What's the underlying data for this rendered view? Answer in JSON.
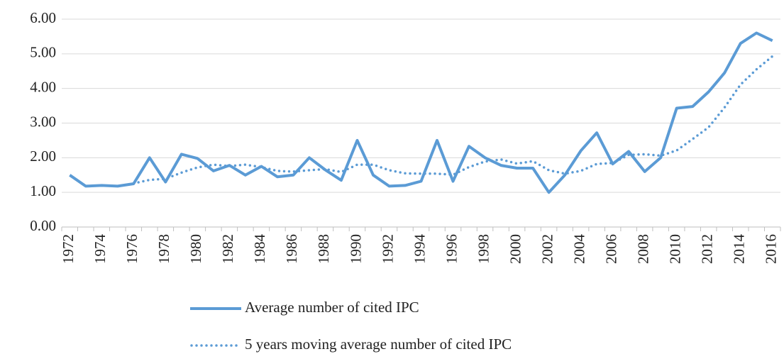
{
  "chart_data": {
    "type": "line",
    "categories": [
      "1972",
      null,
      "1974",
      null,
      "1976",
      null,
      "1978",
      null,
      "1980",
      null,
      "1982",
      null,
      "1984",
      null,
      "1986",
      null,
      "1988",
      null,
      "1990",
      null,
      "1992",
      null,
      "1994",
      null,
      "1996",
      null,
      "1998",
      null,
      "2000",
      null,
      "2002",
      null,
      "2004",
      null,
      "2006",
      null,
      "2008",
      null,
      "2010",
      null,
      "2012",
      null,
      "2014",
      null,
      "2016"
    ],
    "series": [
      {
        "name": "Average number of cited IPC",
        "color": "#5b9bd5",
        "style": "solid",
        "values": [
          1.5,
          1.18,
          1.2,
          1.18,
          1.25,
          2.0,
          1.3,
          2.1,
          1.98,
          1.62,
          1.78,
          1.5,
          1.75,
          1.45,
          1.5,
          2.0,
          1.65,
          1.35,
          2.5,
          1.5,
          1.18,
          1.2,
          1.32,
          2.5,
          1.32,
          2.33,
          2.0,
          1.78,
          1.7,
          1.7,
          1.0,
          1.5,
          2.2,
          2.72,
          1.82,
          2.18,
          1.6,
          2.0,
          3.43,
          3.48,
          3.9,
          4.45,
          5.3,
          5.6,
          5.38
        ]
      },
      {
        "name": "5 years moving average number of cited IPC",
        "color": "#5b9bd5",
        "style": "dotted",
        "values": [
          null,
          null,
          null,
          null,
          1.26,
          1.36,
          1.39,
          1.57,
          1.72,
          1.8,
          1.76,
          1.8,
          1.73,
          1.62,
          1.6,
          1.64,
          1.67,
          1.59,
          1.8,
          1.8,
          1.64,
          1.55,
          1.54,
          1.54,
          1.51,
          1.73,
          1.89,
          1.95,
          1.83,
          1.9,
          1.64,
          1.54,
          1.62,
          1.82,
          1.85,
          2.08,
          2.1,
          2.06,
          2.21,
          2.54,
          2.88,
          3.45,
          4.11,
          4.55,
          4.93
        ]
      }
    ],
    "ylim": [
      0,
      6
    ],
    "yticks": [
      {
        "value": 0,
        "label": "0.00"
      },
      {
        "value": 1,
        "label": "1.00"
      },
      {
        "value": 2,
        "label": "2.00"
      },
      {
        "value": 3,
        "label": "3.00"
      },
      {
        "value": 4,
        "label": "4.00"
      },
      {
        "value": 5,
        "label": "5.00"
      },
      {
        "value": 6,
        "label": "6.00"
      }
    ],
    "grid": true
  }
}
